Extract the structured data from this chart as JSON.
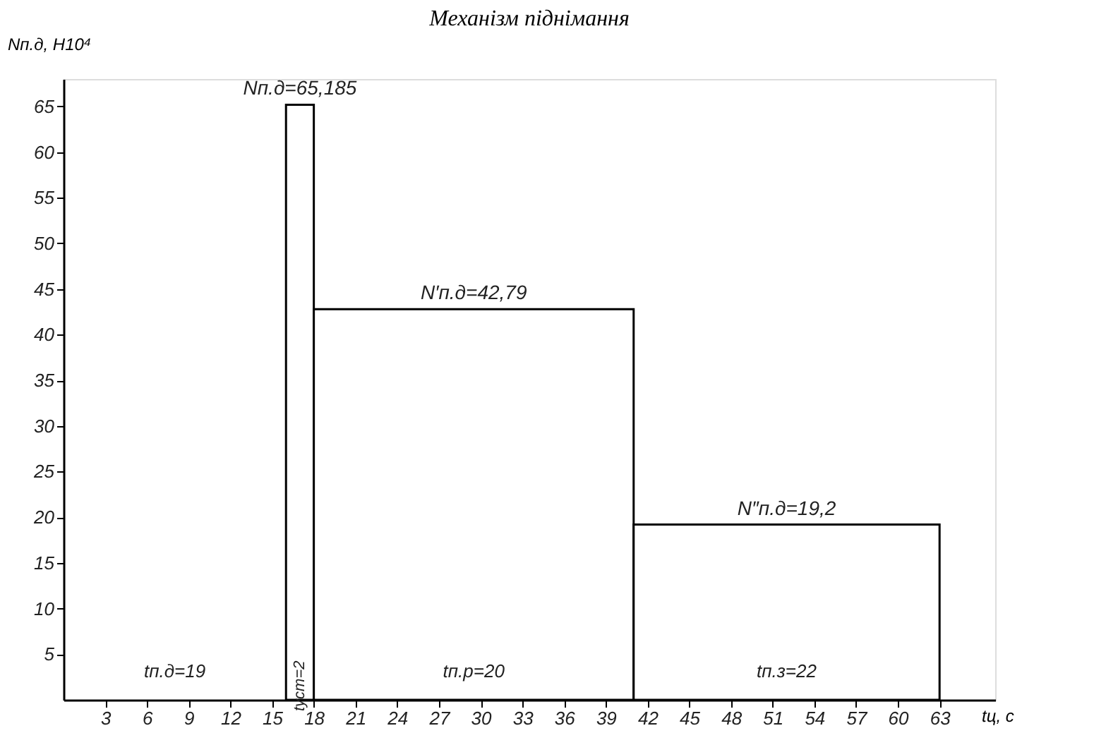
{
  "chart_data": {
    "type": "histogram",
    "title": "Механізм піднімання",
    "xlabel": "tц, с",
    "ylabel": "Nп.д, Н10⁴",
    "bins": [
      16,
      18,
      41,
      63
    ],
    "values": [
      65.185,
      42.79,
      19.2
    ],
    "color": "#000000",
    "xlim": [
      0,
      67
    ],
    "xticks": [
      3,
      6,
      9,
      12,
      15,
      18,
      21,
      24,
      27,
      30,
      33,
      36,
      39,
      42,
      45,
      48,
      51,
      54,
      57,
      60,
      63
    ],
    "ylim": [
      0,
      68
    ],
    "yticks": [
      5,
      10,
      15,
      20,
      25,
      30,
      35,
      40,
      45,
      50,
      55,
      60,
      65
    ],
    "annotations": [
      {
        "text": "Nп.д=65,185",
        "x": 17,
        "y": 65.185
      },
      {
        "text": "N′п.д=42,79",
        "x": 29.5,
        "y": 42.79
      },
      {
        "text": "N″п.д=19,2",
        "x": 52,
        "y": 19.2
      },
      "tп.д=19",
      "tуст=2",
      "tп.р=20",
      "tп.з=22"
    ],
    "grid": false
  }
}
